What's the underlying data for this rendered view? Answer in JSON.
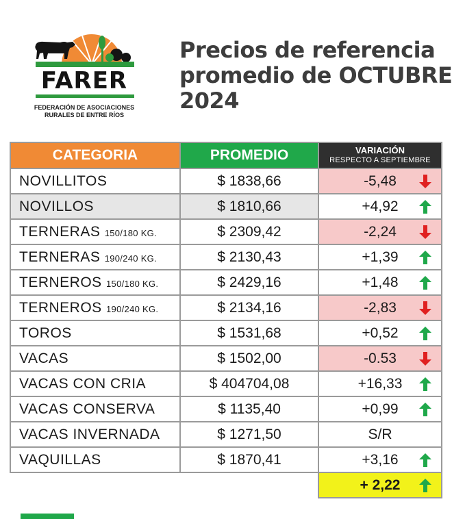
{
  "logo": {
    "word": "FARER",
    "subtitle_line1": "FEDERACIÓN DE ASOCIACIONES",
    "subtitle_line2": "RURALES DE ENTRE RÍOS"
  },
  "title": {
    "line1": "Precios de referencia",
    "line2": "promedio de OCTUBRE",
    "line3": "2024"
  },
  "table": {
    "headers": {
      "categoria": "CATEGORIA",
      "promedio": "PROMEDIO",
      "variacion": "VARIACIÓN",
      "variacion_sub": "RESPECTO A SEPTIEMBRE"
    },
    "rows": [
      {
        "cat": "NOVILLITOS",
        "size": "",
        "promedio": "$ 1838,66",
        "var": "-5,48",
        "trend": "down"
      },
      {
        "cat": "NOVILLOS",
        "size": "",
        "promedio": "$ 1810,66",
        "var": "+4,92",
        "trend": "up"
      },
      {
        "cat": "TERNERAS",
        "size": "150/180 KG.",
        "promedio": "$ 2309,42",
        "var": "-2,24",
        "trend": "down"
      },
      {
        "cat": "TERNERAS",
        "size": "190/240 KG.",
        "promedio": "$ 2130,43",
        "var": "+1,39",
        "trend": "up"
      },
      {
        "cat": "TERNEROS",
        "size": "150/180 KG.",
        "promedio": "$ 2429,16",
        "var": "+1,48",
        "trend": "up"
      },
      {
        "cat": "TERNEROS",
        "size": "190/240 KG.",
        "promedio": "$ 2134,16",
        "var": "-2,83",
        "trend": "down"
      },
      {
        "cat": "TOROS",
        "size": "",
        "promedio": "$ 1531,68",
        "var": "+0,52",
        "trend": "up"
      },
      {
        "cat": "VACAS",
        "size": "",
        "promedio": "$ 1502,00",
        "var": "-0.53",
        "trend": "down"
      },
      {
        "cat": "VACAS CON CRIA",
        "size": "",
        "promedio": "$ 404704,08",
        "var": "+16,33",
        "trend": "up"
      },
      {
        "cat": "VACAS CONSERVA",
        "size": "",
        "promedio": "$ 1135,40",
        "var": "+0,99",
        "trend": "up"
      },
      {
        "cat": "VACAS INVERNADA",
        "size": "",
        "promedio": "$ 1271,50",
        "var": "S/R",
        "trend": "none"
      },
      {
        "cat": "VAQUILLAS",
        "size": "",
        "promedio": "$ 1870,41",
        "var": "+3,16",
        "trend": "up"
      }
    ],
    "total": {
      "var": "+ 2,22",
      "trend": "up"
    }
  },
  "colors": {
    "orange": "#f08a35",
    "green": "#20a84a",
    "dark": "#2f2f2f",
    "negative_bg": "#f7c9c9",
    "total_bg": "#f2f21a",
    "arrow_up": "#1fa84a",
    "arrow_down": "#e02020"
  }
}
